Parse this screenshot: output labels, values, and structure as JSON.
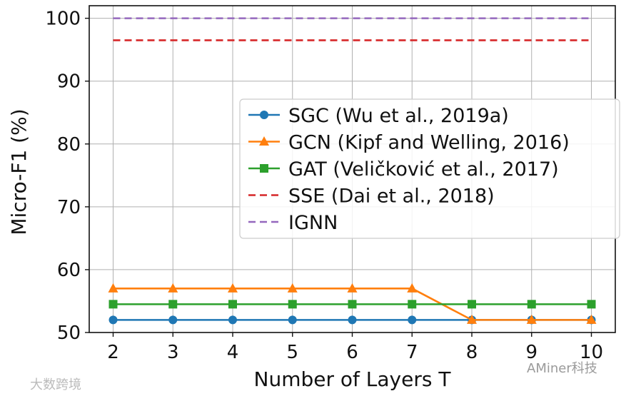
{
  "chart_data": {
    "type": "line",
    "xlabel": "Number of Layers T",
    "ylabel": "Micro-F1 (%)",
    "x": [
      2,
      3,
      4,
      5,
      6,
      7,
      8,
      9,
      10
    ],
    "xlim": [
      1.6,
      10.4
    ],
    "ylim": [
      50,
      102
    ],
    "xticks": [
      2,
      3,
      4,
      5,
      6,
      7,
      8,
      9,
      10
    ],
    "yticks": [
      50,
      60,
      70,
      80,
      90,
      100
    ],
    "grid": true,
    "legend_position": "center-right",
    "series": [
      {
        "name": "SGC (Wu et al., 2019a)",
        "color": "#1f77b4",
        "marker": "circle",
        "linestyle": "solid",
        "values": [
          52,
          52,
          52,
          52,
          52,
          52,
          52,
          52,
          52
        ]
      },
      {
        "name": "GCN (Kipf and Welling, 2016)",
        "color": "#ff7f0e",
        "marker": "triangle",
        "linestyle": "solid",
        "values": [
          57,
          57,
          57,
          57,
          57,
          57,
          52,
          52,
          52
        ]
      },
      {
        "name": "GAT (Veličković et al., 2017)",
        "color": "#2ca02c",
        "marker": "square",
        "linestyle": "solid",
        "values": [
          54.5,
          54.5,
          54.5,
          54.5,
          54.5,
          54.5,
          54.5,
          54.5,
          54.5
        ]
      },
      {
        "name": "SSE (Dai et al., 2018)",
        "color": "#d62728",
        "marker": "none",
        "linestyle": "dashed",
        "values": [
          96.5,
          96.5,
          96.5,
          96.5,
          96.5,
          96.5,
          96.5,
          96.5,
          96.5
        ]
      },
      {
        "name": "IGNN",
        "color": "#9467bd",
        "marker": "none",
        "linestyle": "dashed",
        "values": [
          100,
          100,
          100,
          100,
          100,
          100,
          100,
          100,
          100
        ]
      }
    ]
  },
  "watermarks": {
    "left": "大数跨境",
    "right": "AMiner科技"
  }
}
